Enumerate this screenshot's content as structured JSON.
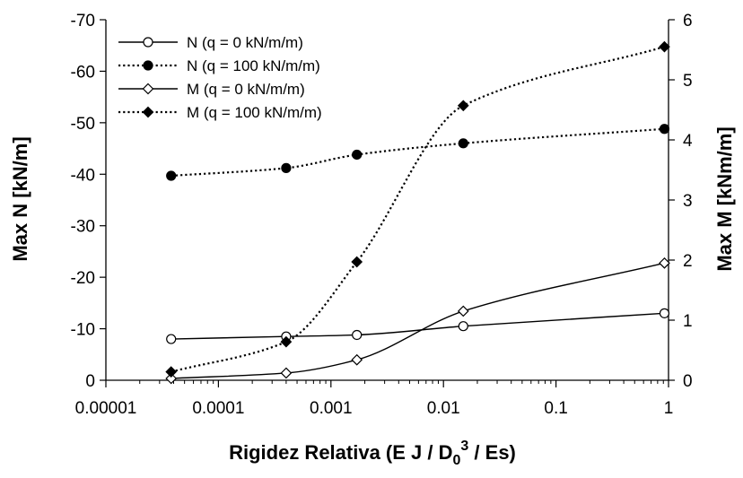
{
  "chart_data": {
    "type": "line",
    "x_scale": "log",
    "xlim": [
      1e-05,
      1
    ],
    "x_ticks": [
      "0.00001",
      "0.0001",
      "0.001",
      "0.01",
      "0.1",
      "1"
    ],
    "xlabel": "Rigidez Relativa (E J / D",
    "xlabel_sub": "0",
    "xlabel_sup": "3",
    "xlabel_tail": " / Es)",
    "ylabel": "Max N [kN/m]",
    "ylim": [
      0,
      -70
    ],
    "y_ticks": [
      "-70",
      "-60",
      "-50",
      "-40",
      "-30",
      "-20",
      "-10",
      "0"
    ],
    "y2label": "Max M [kNm/m]",
    "y2lim": [
      0,
      6
    ],
    "y2_ticks": [
      "6",
      "5",
      "4",
      "3",
      "2",
      "1",
      "0"
    ],
    "legend_position": "top-left",
    "grid": false,
    "series": [
      {
        "name": "N (q = 0 kN/m/m)",
        "axis": "left",
        "line": "solid",
        "marker": "circle-open",
        "x": [
          3.8e-05,
          0.0004,
          0.0017,
          0.015,
          0.92
        ],
        "y": [
          -8,
          -8.5,
          -8.8,
          -10.5,
          -13
        ]
      },
      {
        "name": "N (q = 100 kN/m/m)",
        "axis": "left",
        "line": "dotted",
        "marker": "circle-filled",
        "x": [
          3.8e-05,
          0.0004,
          0.0017,
          0.015,
          0.92
        ],
        "y": [
          -39.7,
          -41.2,
          -43.8,
          -46,
          -48.8
        ]
      },
      {
        "name": "M (q = 0 kN/m/m)",
        "axis": "right",
        "line": "solid",
        "marker": "diamond-open",
        "x": [
          3.8e-05,
          0.0004,
          0.0017,
          0.015,
          0.92
        ],
        "y": [
          0.03,
          0.12,
          0.34,
          1.15,
          1.95
        ]
      },
      {
        "name": "M (q = 100 kN/m/m)",
        "axis": "right",
        "line": "dotted",
        "marker": "diamond-filled",
        "x": [
          3.8e-05,
          0.0004,
          0.0017,
          0.015,
          0.92
        ],
        "y": [
          0.14,
          0.64,
          1.97,
          4.57,
          5.55
        ]
      }
    ]
  }
}
